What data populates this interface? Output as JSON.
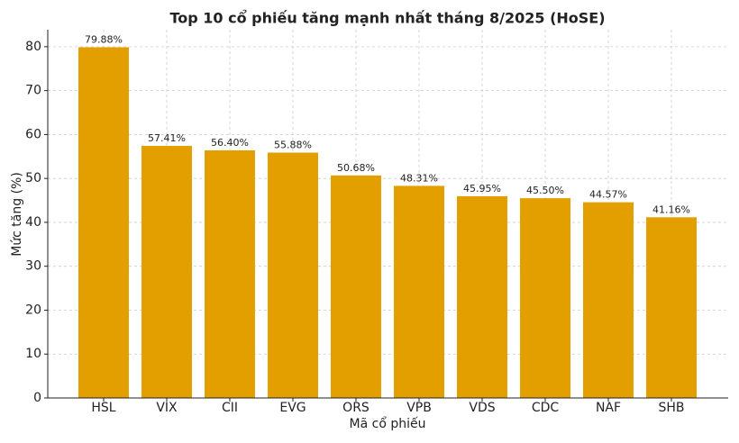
{
  "chart_data": {
    "type": "bar",
    "title": "Top 10 cổ phiếu tăng mạnh nhất tháng 8/2025 (HoSE)",
    "x_label": "Mã cổ phiếu",
    "y_label": "Mức tăng (%)",
    "categories": [
      "HSL",
      "VIX",
      "CII",
      "EVG",
      "ORS",
      "VPB",
      "VDS",
      "CDC",
      "NAF",
      "SHB"
    ],
    "values": [
      79.88,
      57.41,
      56.4,
      55.88,
      50.68,
      48.31,
      45.95,
      45.5,
      44.57,
      41.16
    ],
    "value_labels": [
      "79.88%",
      "57.41%",
      "56.40%",
      "55.88%",
      "50.68%",
      "48.31%",
      "45.95%",
      "45.50%",
      "44.57%",
      "41.16%"
    ],
    "color": "#e39f00",
    "ylim": [
      0,
      83.87
    ],
    "yticks": [
      0,
      10,
      20,
      30,
      40,
      50,
      60,
      70,
      80
    ],
    "grid": true
  }
}
